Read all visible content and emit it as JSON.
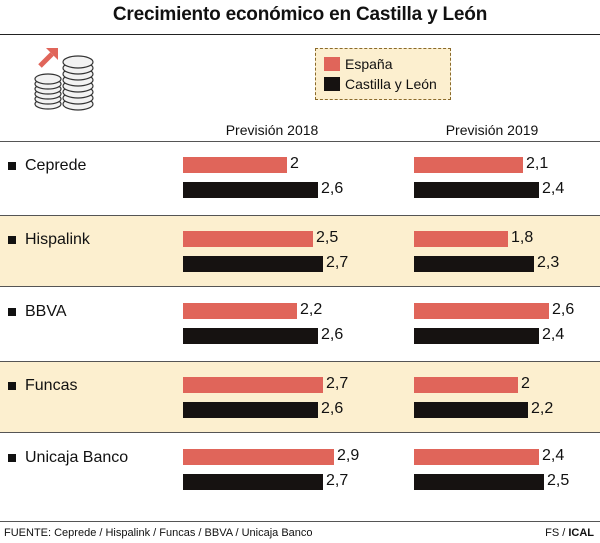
{
  "chart_data": {
    "type": "bar",
    "title": "Crecimiento económico en Castilla y León",
    "columns": [
      "Previsión 2018",
      "Previsión 2019"
    ],
    "legend": [
      {
        "name": "España",
        "color": "#e0655a"
      },
      {
        "name": "Castilla y León",
        "color": "#161211"
      }
    ],
    "legend_placement": "top-right",
    "categories": [
      "Ceprede",
      "Hispalink",
      "BBVA",
      "Funcas",
      "Unicaja Banco"
    ],
    "series": [
      {
        "name": "España",
        "column": "Previsión 2018",
        "values": [
          2.0,
          2.5,
          2.2,
          2.7,
          2.9
        ],
        "labels": [
          "2",
          "2,5",
          "2,2",
          "2,7",
          "2,9"
        ]
      },
      {
        "name": "Castilla y León",
        "column": "Previsión 2018",
        "values": [
          2.6,
          2.7,
          2.6,
          2.6,
          2.7
        ],
        "labels": [
          "2,6",
          "2,7",
          "2,6",
          "2,6",
          "2,7"
        ]
      },
      {
        "name": "España",
        "column": "Previsión 2019",
        "values": [
          2.1,
          1.8,
          2.6,
          2.0,
          2.4
        ],
        "labels": [
          "2,1",
          "1,8",
          "2,6",
          "2",
          "2,4"
        ]
      },
      {
        "name": "Castilla y León",
        "column": "Previsión 2019",
        "values": [
          2.4,
          2.3,
          2.4,
          2.2,
          2.5
        ],
        "labels": [
          "2,4",
          "2,3",
          "2,4",
          "2,2",
          "2,5"
        ]
      }
    ],
    "shaded_rows": [
      1,
      3
    ]
  },
  "footer": {
    "source": "FUENTE: Ceprede / Hispalink / Funcas / BBVA / Unicaja Banco",
    "credit_left": "FS / ",
    "credit_right": "ICAL"
  },
  "icon": "coins-growth-icon"
}
